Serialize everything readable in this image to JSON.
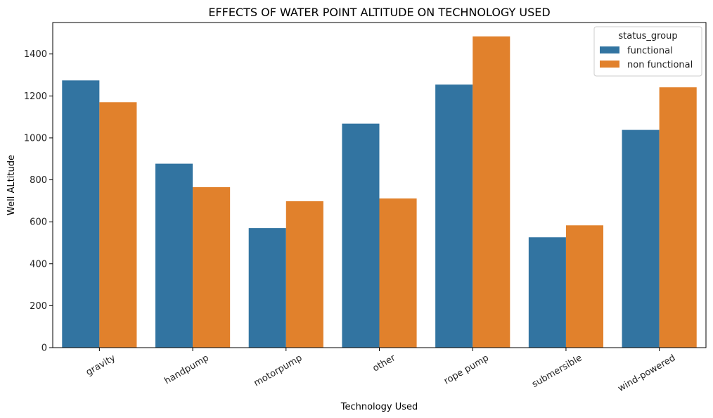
{
  "chart_data": {
    "type": "bar",
    "title": "EFFECTS OF WATER POINT ALTITUDE ON TECHNOLOGY USED",
    "xlabel": "Technology Used",
    "ylabel": "Well ALtitude",
    "categories": [
      "gravity",
      "handpump",
      "motorpump",
      "other",
      "rope pump",
      "submersible",
      "wind-powered"
    ],
    "series": [
      {
        "name": "functional",
        "color": "#3274a1",
        "values": [
          1274,
          877,
          570,
          1068,
          1254,
          526,
          1038
        ]
      },
      {
        "name": "non functional",
        "color": "#e1812c",
        "values": [
          1170,
          765,
          698,
          711,
          1484,
          583,
          1241
        ]
      }
    ],
    "ylim": [
      0,
      1550
    ],
    "yticks": [
      0,
      200,
      400,
      600,
      800,
      1000,
      1200,
      1400
    ],
    "grid": false,
    "legend": {
      "title": "status_group",
      "placement": "top-right"
    }
  }
}
